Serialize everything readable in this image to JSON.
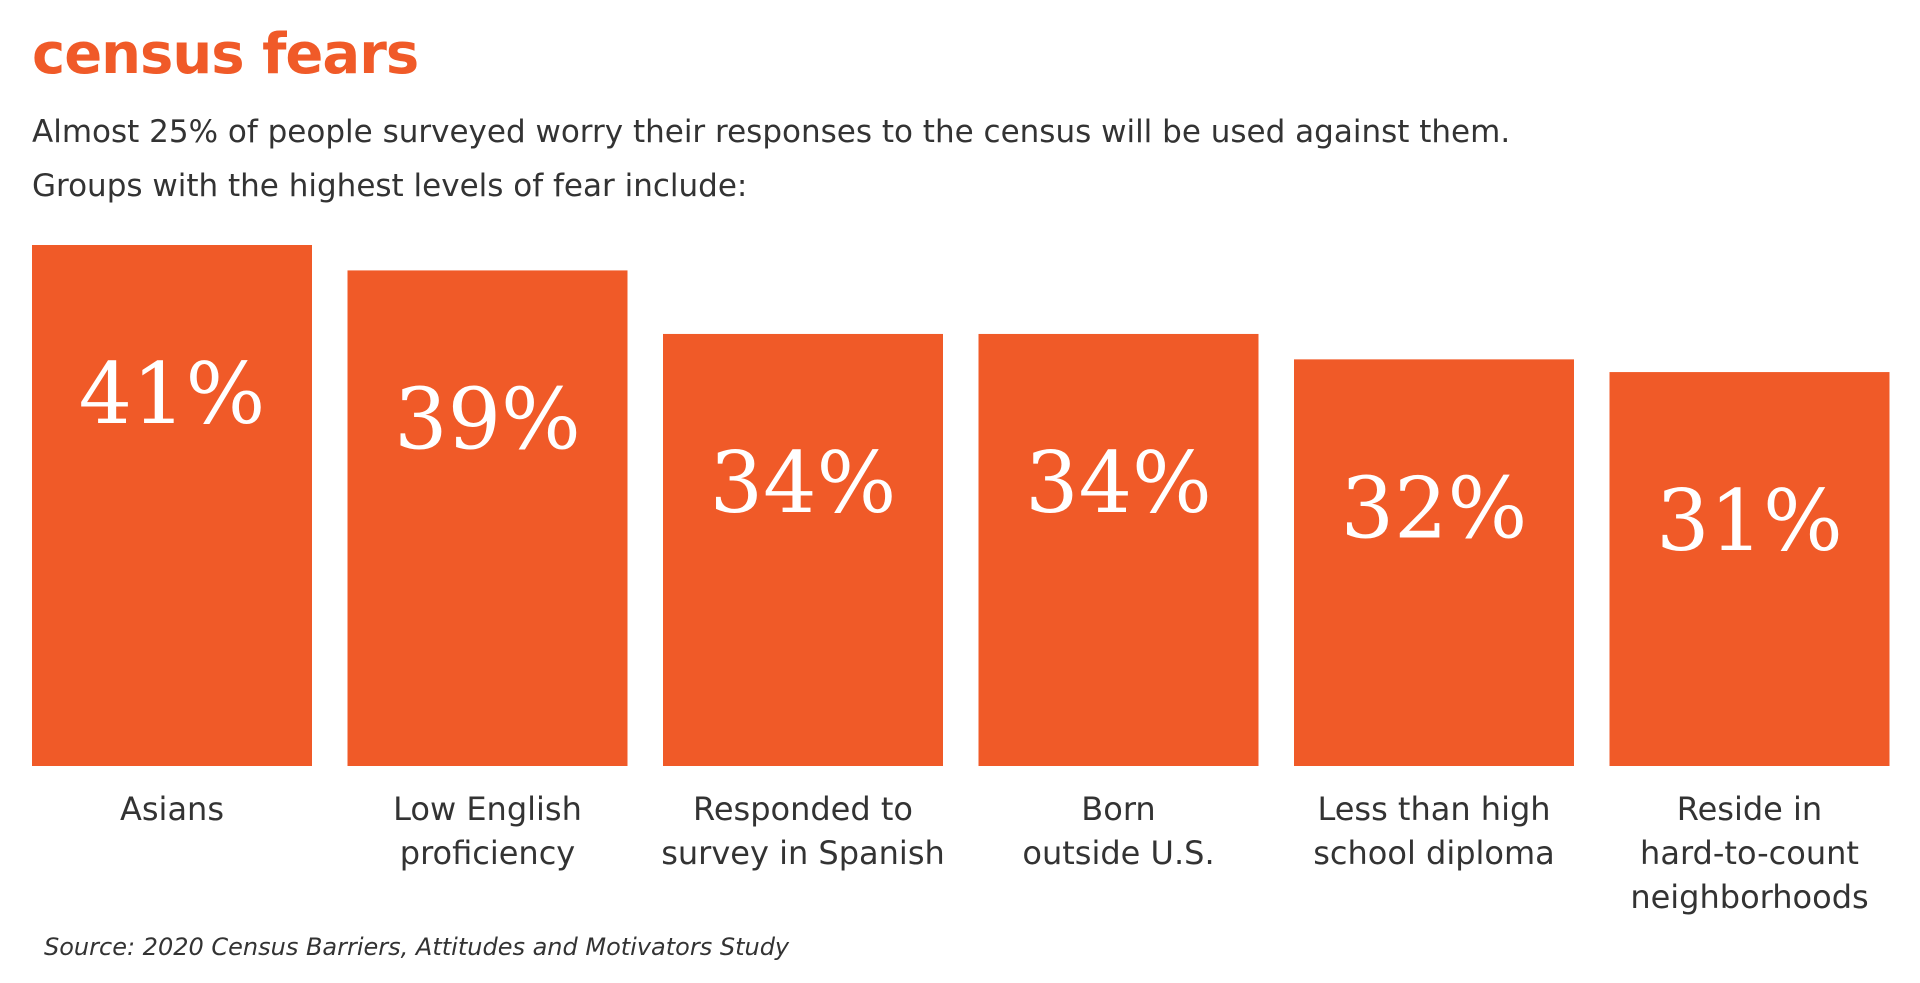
{
  "chart_data": {
    "type": "bar",
    "title": "census fears",
    "subtitle": [
      "Almost 25% of people surveyed worry their responses to the census will be used against them.",
      "Groups with the highest levels of fear include:"
    ],
    "categories": [
      [
        "Asians"
      ],
      [
        "Low English",
        "proficiency"
      ],
      [
        "Responded to",
        "survey in Spanish"
      ],
      [
        "Born",
        "outside U.S."
      ],
      [
        "Less than high",
        "school diploma"
      ],
      [
        "Reside in",
        "hard-to-count",
        "neighborhoods"
      ]
    ],
    "values": [
      41,
      39,
      34,
      34,
      32,
      31
    ],
    "data_labels": [
      "41%",
      "39%",
      "34%",
      "34%",
      "32%",
      "31%"
    ],
    "unit": "%",
    "ylim": [
      0,
      41
    ],
    "grid": false,
    "bar_color": "#F05A28",
    "label_color": "#FFFFFF",
    "source": "Source: 2020 Census Barriers, Attitudes and Motivators Study"
  }
}
